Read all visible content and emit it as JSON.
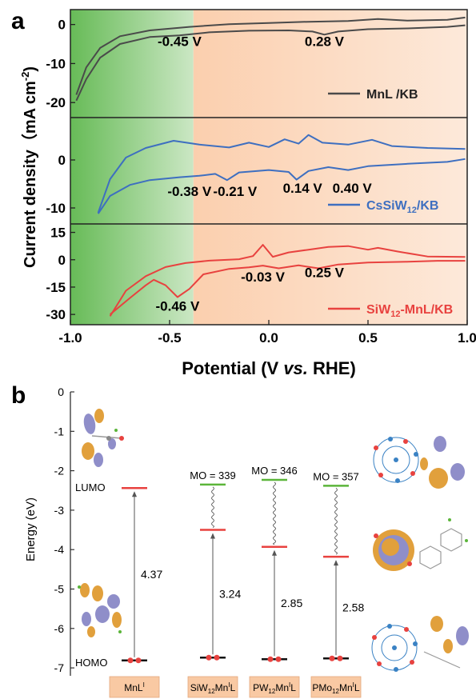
{
  "chart_data": [
    {
      "panel_label": "a",
      "type": "line",
      "xlabel_parts": [
        "Potential (V ",
        "vs.",
        " RHE)"
      ],
      "ylabel": "Current density（mA cm",
      "ylabel_sup": "-2",
      "ylabel_close": ")",
      "xlim": [
        -1.0,
        1.0
      ],
      "xticks": [
        "-1.0",
        "-0.5",
        "0.0",
        "0.5",
        "1.0"
      ],
      "green_region_end": -0.38,
      "subplots": [
        {
          "legend": {
            "main": "MnL /KB",
            "sub": "",
            "tail": ""
          },
          "color": "#4a4a4a",
          "ylim": [
            -22,
            3
          ],
          "yticks": [
            "0",
            "-10",
            "-20"
          ],
          "annotations": [
            {
              "text": "-0.45 V",
              "x": -0.45,
              "y": -5.5
            },
            {
              "text": "0.28 V",
              "x": 0.28,
              "y": -5.5
            }
          ],
          "upper": [
            [
              -0.97,
              -18
            ],
            [
              -0.92,
              -11
            ],
            [
              -0.85,
              -6
            ],
            [
              -0.75,
              -3
            ],
            [
              -0.6,
              -1.5
            ],
            [
              -0.4,
              -0.6
            ],
            [
              -0.2,
              0.1
            ],
            [
              0.0,
              0.4
            ],
            [
              0.2,
              0.7
            ],
            [
              0.4,
              0.9
            ],
            [
              0.55,
              1.4
            ],
            [
              0.7,
              1.0
            ],
            [
              0.9,
              1.2
            ],
            [
              0.99,
              1.8
            ]
          ],
          "lower": [
            [
              -0.97,
              -19.5
            ],
            [
              -0.92,
              -14
            ],
            [
              -0.85,
              -8.5
            ],
            [
              -0.75,
              -5
            ],
            [
              -0.6,
              -3.2
            ],
            [
              -0.45,
              -2.8
            ],
            [
              -0.3,
              -2.0
            ],
            [
              -0.1,
              -1.6
            ],
            [
              0.1,
              -1.5
            ],
            [
              0.22,
              -1.8
            ],
            [
              0.28,
              -2.6
            ],
            [
              0.35,
              -1.8
            ],
            [
              0.5,
              -1.2
            ],
            [
              0.7,
              -1.0
            ],
            [
              0.9,
              -0.6
            ],
            [
              0.99,
              -0.2
            ]
          ]
        },
        {
          "legend": {
            "main": "CsSiW",
            "sub": "12",
            "tail": "/KB"
          },
          "color": "#3e6fc0",
          "ylim": [
            -12,
            8
          ],
          "yticks": [
            "0",
            "-10"
          ],
          "annotations": [
            {
              "text": "-0.38 V",
              "x": -0.4,
              "y": -7.5
            },
            {
              "text": "-0.21 V",
              "x": -0.17,
              "y": -7.5
            },
            {
              "text": "0.14 V",
              "x": 0.17,
              "y": -6.8
            },
            {
              "text": "0.40 V",
              "x": 0.42,
              "y": -6.8
            }
          ],
          "upper": [
            [
              -0.86,
              -11
            ],
            [
              -0.8,
              -4
            ],
            [
              -0.72,
              0.5
            ],
            [
              -0.62,
              2.5
            ],
            [
              -0.48,
              4
            ],
            [
              -0.35,
              3.2
            ],
            [
              -0.2,
              2.6
            ],
            [
              -0.1,
              3.6
            ],
            [
              0.0,
              2.7
            ],
            [
              0.08,
              4.3
            ],
            [
              0.15,
              3.4
            ],
            [
              0.2,
              5.2
            ],
            [
              0.27,
              3.6
            ],
            [
              0.4,
              3.2
            ],
            [
              0.52,
              4.2
            ],
            [
              0.62,
              2.9
            ],
            [
              0.8,
              2.5
            ],
            [
              0.99,
              2.3
            ]
          ],
          "lower": [
            [
              -0.86,
              -11.2
            ],
            [
              -0.8,
              -7.5
            ],
            [
              -0.7,
              -5.2
            ],
            [
              -0.6,
              -4.2
            ],
            [
              -0.45,
              -3.6
            ],
            [
              -0.35,
              -3.3
            ],
            [
              -0.27,
              -2.9
            ],
            [
              -0.21,
              -4.2
            ],
            [
              -0.15,
              -2.6
            ],
            [
              0.0,
              -2.1
            ],
            [
              0.1,
              -2.5
            ],
            [
              0.14,
              -4.1
            ],
            [
              0.2,
              -2.3
            ],
            [
              0.3,
              -1.5
            ],
            [
              0.4,
              -2.1
            ],
            [
              0.5,
              -1.3
            ],
            [
              0.7,
              -0.8
            ],
            [
              0.9,
              -0.4
            ],
            [
              0.99,
              0.2
            ]
          ]
        },
        {
          "legend": {
            "main": "SiW",
            "sub": "12",
            "tail": "-MnL/KB"
          },
          "color": "#e8423f",
          "ylim": [
            -33,
            17
          ],
          "yticks": [
            "15",
            "0",
            "-15",
            "-30"
          ],
          "annotations": [
            {
              "text": "-0.03 V",
              "x": -0.03,
              "y": -12
            },
            {
              "text": "0.25 V",
              "x": 0.28,
              "y": -9.5
            },
            {
              "text": "-0.46 V",
              "x": -0.46,
              "y": -28
            }
          ],
          "upper": [
            [
              -0.8,
              -31
            ],
            [
              -0.72,
              -17
            ],
            [
              -0.62,
              -9
            ],
            [
              -0.52,
              -4
            ],
            [
              -0.42,
              -1.8
            ],
            [
              -0.3,
              -0.5
            ],
            [
              -0.15,
              0.3
            ],
            [
              -0.08,
              2
            ],
            [
              -0.03,
              8.2
            ],
            [
              0.02,
              1.6
            ],
            [
              0.1,
              4
            ],
            [
              0.2,
              5.5
            ],
            [
              0.3,
              7
            ],
            [
              0.4,
              7.5
            ],
            [
              0.5,
              5.5
            ],
            [
              0.55,
              6.5
            ],
            [
              0.65,
              4.5
            ],
            [
              0.8,
              1.8
            ],
            [
              0.99,
              1.5
            ]
          ],
          "lower": [
            [
              -0.8,
              -30
            ],
            [
              -0.7,
              -21
            ],
            [
              -0.62,
              -14
            ],
            [
              -0.58,
              -11
            ],
            [
              -0.52,
              -14
            ],
            [
              -0.46,
              -20.5
            ],
            [
              -0.4,
              -16
            ],
            [
              -0.33,
              -8
            ],
            [
              -0.2,
              -5
            ],
            [
              -0.1,
              -4.2
            ],
            [
              -0.03,
              -3.2
            ],
            [
              0.05,
              -4.7
            ],
            [
              0.15,
              -3.1
            ],
            [
              0.25,
              -4.7
            ],
            [
              0.35,
              -2.6
            ],
            [
              0.5,
              -1.5
            ],
            [
              0.7,
              -1.1
            ],
            [
              0.85,
              -0.6
            ],
            [
              0.99,
              -0.6
            ]
          ]
        }
      ]
    },
    {
      "panel_label": "b",
      "type": "energy_level_diagram",
      "ylabel": "Energy (eV)",
      "ylim": [
        -7.2,
        0
      ],
      "yticks": [
        "0",
        "-1",
        "-2",
        "-3",
        "-4",
        "-5",
        "-6",
        "-7"
      ],
      "side_labels": {
        "lumo": "LUMO",
        "homo": "HOMO"
      },
      "colors": {
        "lumo": "#e8423f",
        "mo": "#5bb53a",
        "homo": "#111111",
        "electron": "#e8423f",
        "box": "#f9c9a3"
      },
      "columns": [
        {
          "box": {
            "a": "Mn",
            "sup": "I",
            "b": "L"
          },
          "lumo": -2.44,
          "mo": null,
          "mo_label": "",
          "homo": -6.81,
          "gap": "4.37"
        },
        {
          "box": {
            "a": "SiW",
            "sub": "12",
            "b": "Mn",
            "sup": "I",
            "c": "L"
          },
          "lumo": -3.5,
          "mo": -2.35,
          "mo_label": "MO = 339",
          "homo": -6.74,
          "gap": "3.24"
        },
        {
          "box": {
            "a": "PW",
            "sub": "12",
            "b": "Mn",
            "sup": "I",
            "c": "L"
          },
          "lumo": -3.93,
          "mo": -2.23,
          "mo_label": "MO = 346",
          "homo": -6.78,
          "gap": "2.85"
        },
        {
          "box": {
            "a": "PMo",
            "sub": "12",
            "b": "Mn",
            "sup": "I",
            "c": "L"
          },
          "lumo": -4.18,
          "mo": -2.38,
          "mo_label": "MO = 357",
          "homo": -6.76,
          "gap": "2.58"
        }
      ]
    }
  ]
}
